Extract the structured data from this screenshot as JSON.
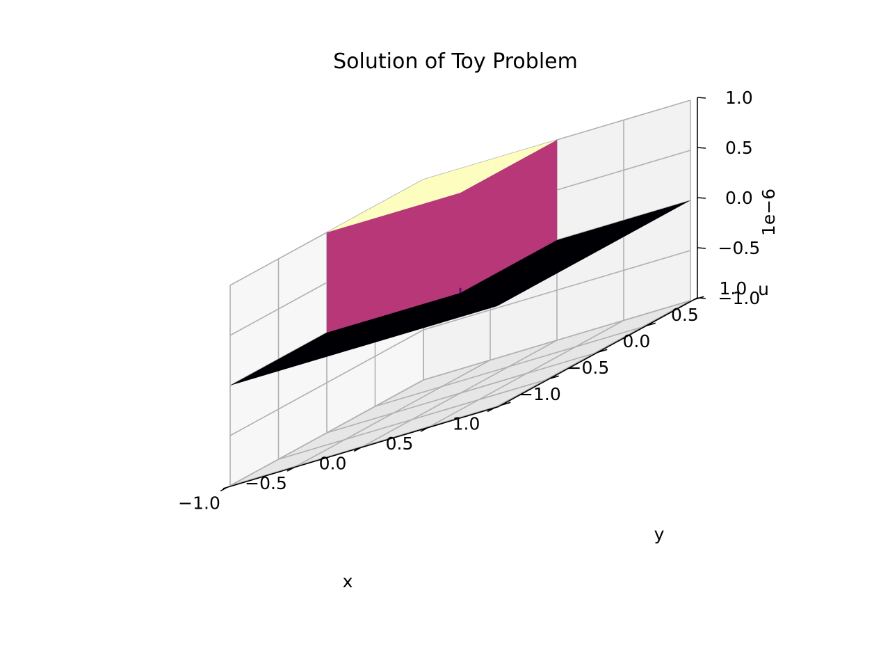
{
  "chart_data": {
    "type": "surface3d",
    "title": "Solution of Toy Problem",
    "xlabel": "x",
    "ylabel": "y",
    "zlabel": "u",
    "z_offset_label": "1e−6",
    "xlim": [
      -1.0,
      1.0
    ],
    "ylim": [
      -1.0,
      1.0
    ],
    "zlim": [
      -1.0,
      1.0
    ],
    "x_ticks": [
      -1.0,
      -0.5,
      0.0,
      0.5,
      1.0
    ],
    "y_ticks": [
      -1.0,
      -0.5,
      0.0,
      0.5,
      1.0
    ],
    "z_ticks": [
      -1.0,
      -0.5,
      0.0,
      0.5,
      1.0
    ],
    "x_tick_labels": [
      "−1.0",
      "−0.5",
      "0.0",
      "0.5",
      "1.0"
    ],
    "y_tick_labels": [
      "−1.0",
      "−0.5",
      "0.0",
      "0.5",
      "1.0"
    ],
    "z_tick_labels": [
      "−1.0",
      "−0.5",
      "0.0",
      "0.5",
      "1.0"
    ],
    "grid": true,
    "colormap": "magma",
    "surface": {
      "description_values": "u is zero everywhere except over the raised square region",
      "base_value": 0.0,
      "raised_region": {
        "x_range": [
          -1.0,
          0.0
        ],
        "y_range": [
          0.0,
          1.0
        ],
        "value": 1.0
      }
    },
    "colors": {
      "top_face": "#fcfdbf",
      "side_face": "#b73779",
      "base": "#000004",
      "edge_line": "#5c126e",
      "pane_back": "#f2f2f2",
      "pane_side": "#ebebeb",
      "pane_floor": "#e6e6e6",
      "grid": "#b0b0b0"
    }
  }
}
